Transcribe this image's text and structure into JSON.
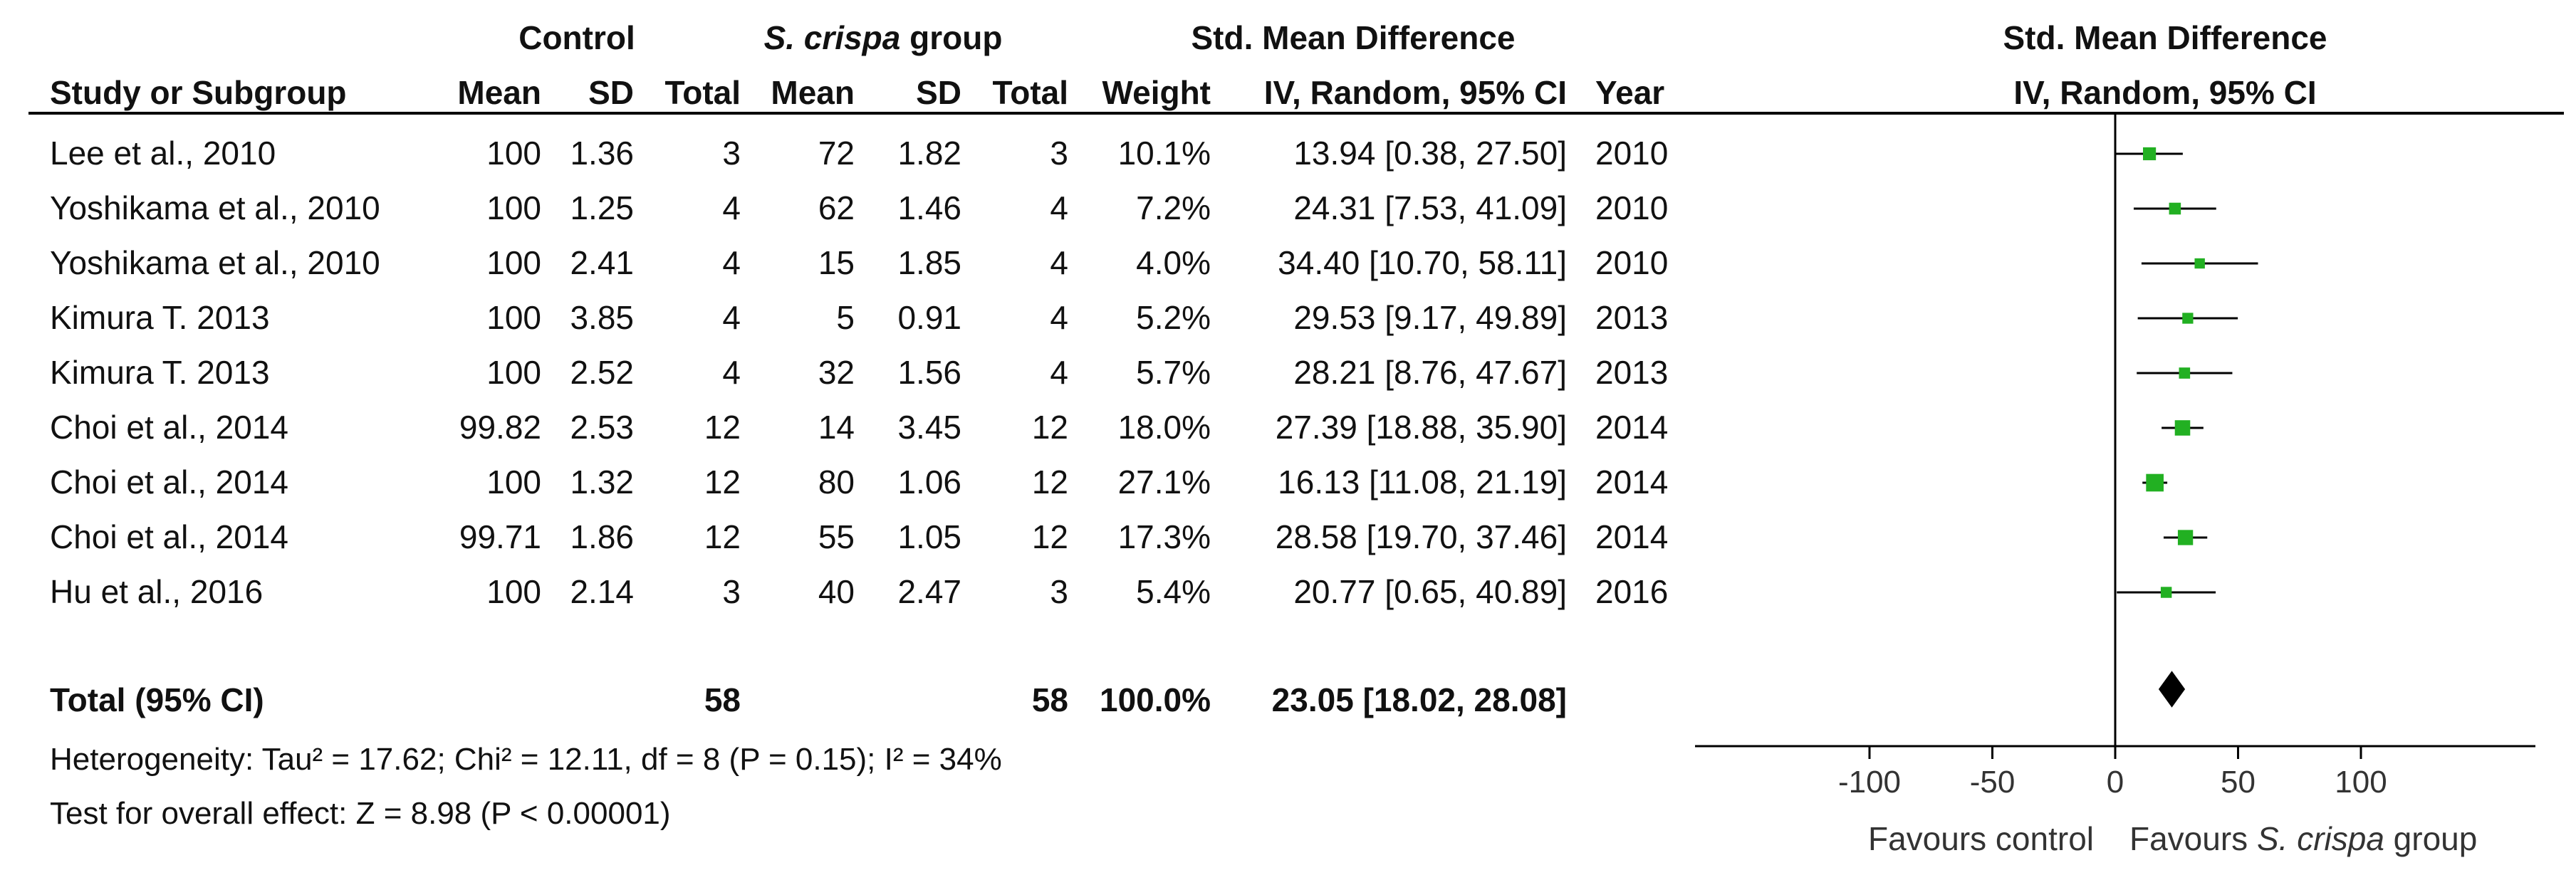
{
  "table": {
    "group_headers": {
      "control": "Control",
      "treatment_italic": "S. crispa",
      "treatment_rest": " group",
      "effect": "Std. Mean Difference"
    },
    "columns": [
      "Study or Subgroup",
      "Mean",
      "SD",
      "Total",
      "Mean",
      "SD",
      "Total",
      "Weight",
      "IV, Random, 95% CI",
      "Year"
    ],
    "rows": [
      {
        "study": "Lee et al., 2010",
        "c_mean": "100",
        "c_sd": "1.36",
        "c_total": "3",
        "t_mean": "72",
        "t_sd": "1.82",
        "t_total": "3",
        "weight": "10.1%",
        "ci": "13.94 [0.38, 27.50]",
        "year": "2010"
      },
      {
        "study": "Yoshikama et al., 2010",
        "c_mean": "100",
        "c_sd": "1.25",
        "c_total": "4",
        "t_mean": "62",
        "t_sd": "1.46",
        "t_total": "4",
        "weight": "7.2%",
        "ci": "24.31 [7.53, 41.09]",
        "year": "2010"
      },
      {
        "study": "Yoshikama et al., 2010",
        "c_mean": "100",
        "c_sd": "2.41",
        "c_total": "4",
        "t_mean": "15",
        "t_sd": "1.85",
        "t_total": "4",
        "weight": "4.0%",
        "ci": "34.40 [10.70, 58.11]",
        "year": "2010"
      },
      {
        "study": "Kimura T. 2013",
        "c_mean": "100",
        "c_sd": "3.85",
        "c_total": "4",
        "t_mean": "5",
        "t_sd": "0.91",
        "t_total": "4",
        "weight": "5.2%",
        "ci": "29.53 [9.17, 49.89]",
        "year": "2013"
      },
      {
        "study": "Kimura T. 2013",
        "c_mean": "100",
        "c_sd": "2.52",
        "c_total": "4",
        "t_mean": "32",
        "t_sd": "1.56",
        "t_total": "4",
        "weight": "5.7%",
        "ci": "28.21 [8.76, 47.67]",
        "year": "2013"
      },
      {
        "study": "Choi et al., 2014",
        "c_mean": "99.82",
        "c_sd": "2.53",
        "c_total": "12",
        "t_mean": "14",
        "t_sd": "3.45",
        "t_total": "12",
        "weight": "18.0%",
        "ci": "27.39 [18.88, 35.90]",
        "year": "2014"
      },
      {
        "study": "Choi et al., 2014",
        "c_mean": "100",
        "c_sd": "1.32",
        "c_total": "12",
        "t_mean": "80",
        "t_sd": "1.06",
        "t_total": "12",
        "weight": "27.1%",
        "ci": "16.13 [11.08, 21.19]",
        "year": "2014"
      },
      {
        "study": "Choi et al., 2014",
        "c_mean": "99.71",
        "c_sd": "1.86",
        "c_total": "12",
        "t_mean": "55",
        "t_sd": "1.05",
        "t_total": "12",
        "weight": "17.3%",
        "ci": "28.58 [19.70, 37.46]",
        "year": "2014"
      },
      {
        "study": "Hu et al., 2016",
        "c_mean": "100",
        "c_sd": "2.14",
        "c_total": "3",
        "t_mean": "40",
        "t_sd": "2.47",
        "t_total": "3",
        "weight": "5.4%",
        "ci": "20.77 [0.65, 40.89]",
        "year": "2016"
      }
    ],
    "total": {
      "label": "Total (95% CI)",
      "c_total": "58",
      "t_total": "58",
      "weight": "100.0%",
      "ci": "23.05 [18.02, 28.08]"
    },
    "heterogeneity": "Heterogeneity: Tau² = 17.62; Chi² = 12.11, df = 8 (P = 0.15); I² = 34%",
    "overall_effect": "Test for overall effect: Z = 8.98 (P < 0.00001)"
  },
  "plot": {
    "header_line1": "Std. Mean Difference",
    "header_line2": "IV, Random, 95% CI",
    "favours_left": "Favours control",
    "favours_right_italic": "S. crispa",
    "favours_right_rest": " group",
    "colors": {
      "marker": "#22b022",
      "line": "#000000"
    }
  },
  "chart_data": {
    "type": "forest",
    "xlim": [
      -100,
      100
    ],
    "xticks": [
      -100,
      -50,
      0,
      50,
      100
    ],
    "xtick_labels": [
      "-100",
      "-50",
      "0",
      "50",
      "100"
    ],
    "studies": [
      {
        "estimate": 13.94,
        "lower": 0.38,
        "upper": 27.5,
        "weight": 10.1
      },
      {
        "estimate": 24.31,
        "lower": 7.53,
        "upper": 41.09,
        "weight": 7.2
      },
      {
        "estimate": 34.4,
        "lower": 10.7,
        "upper": 58.11,
        "weight": 4.0
      },
      {
        "estimate": 29.53,
        "lower": 9.17,
        "upper": 49.89,
        "weight": 5.2
      },
      {
        "estimate": 28.21,
        "lower": 8.76,
        "upper": 47.67,
        "weight": 5.7
      },
      {
        "estimate": 27.39,
        "lower": 18.88,
        "upper": 35.9,
        "weight": 18.0
      },
      {
        "estimate": 16.13,
        "lower": 11.08,
        "upper": 21.19,
        "weight": 27.1
      },
      {
        "estimate": 28.58,
        "lower": 19.7,
        "upper": 37.46,
        "weight": 17.3
      },
      {
        "estimate": 20.77,
        "lower": 0.65,
        "upper": 40.89,
        "weight": 5.4
      }
    ],
    "pooled": {
      "estimate": 23.05,
      "lower": 18.02,
      "upper": 28.08
    }
  }
}
